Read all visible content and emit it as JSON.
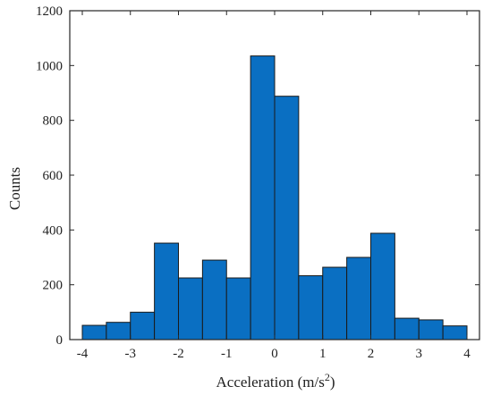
{
  "chart_data": {
    "type": "bar",
    "subtype": "histogram",
    "title": "",
    "xlabel": "Acceleration (m/s",
    "xlabel_superscript": "2",
    "xlabel_suffix": ")",
    "ylabel": "Counts",
    "xlim": [
      -4,
      4
    ],
    "ylim": [
      0,
      1200
    ],
    "xticks": [
      -4,
      -3,
      -2,
      -1,
      0,
      1,
      2,
      3,
      4
    ],
    "yticks": [
      0,
      200,
      400,
      600,
      800,
      1000,
      1200
    ],
    "bin_edges": [
      -4,
      -3.5,
      -3,
      -2.5,
      -2,
      -1.5,
      -1,
      -0.5,
      0,
      0.5,
      1,
      1.5,
      2,
      2.5,
      3,
      3.5,
      4
    ],
    "bin_edges_note": "bins are centered, width 0.5",
    "bins": [
      {
        "from": -4.0,
        "to": -3.5,
        "value": 52
      },
      {
        "from": -3.5,
        "to": -3.0,
        "value": 63
      },
      {
        "from": -3.0,
        "to": -2.5,
        "value": 100
      },
      {
        "from": -2.5,
        "to": -2.0,
        "value": 352
      },
      {
        "from": -2.0,
        "to": -1.5,
        "value": 225
      },
      {
        "from": -1.5,
        "to": -1.0,
        "value": 290
      },
      {
        "from": -1.0,
        "to": -0.5,
        "value": 225
      },
      {
        "from": -0.5,
        "to": 0.0,
        "value": 1035
      },
      {
        "from": 0.0,
        "to": 0.5,
        "value": 888
      },
      {
        "from": 0.5,
        "to": 1.0,
        "value": 233
      },
      {
        "from": 1.0,
        "to": 1.5,
        "value": 264
      },
      {
        "from": 1.5,
        "to": 2.0,
        "value": 300
      },
      {
        "from": 2.0,
        "to": 2.5,
        "value": 388
      },
      {
        "from": 2.5,
        "to": 3.0,
        "value": 78
      },
      {
        "from": 3.0,
        "to": 3.5,
        "value": 72
      },
      {
        "from": 3.5,
        "to": 4.0,
        "value": 50
      }
    ],
    "grid": false,
    "legend": "none",
    "bar_color": "#0a6fc2",
    "bar_edge_color": "#1a1a1a",
    "axis_color": "#262626"
  }
}
